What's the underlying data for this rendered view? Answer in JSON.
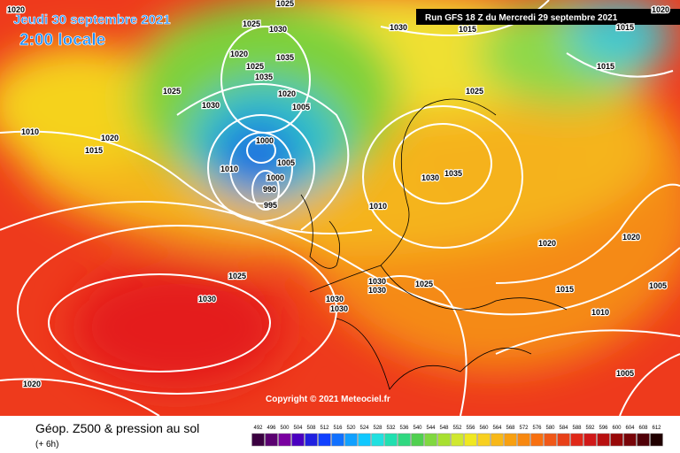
{
  "header": {
    "date": "Jeudi 30 septembre 2021",
    "time": "2:00 locale",
    "run": "Run GFS 18 Z du Mercredi 29 septembre 2021"
  },
  "copyright": "Copyright © 2021 Meteociel.fr",
  "footer": {
    "title": "Géop. Z500 & pression au sol",
    "lead": "(+ 6h)"
  },
  "legend": {
    "ticks": [
      492,
      496,
      500,
      504,
      508,
      512,
      516,
      520,
      524,
      528,
      532,
      536,
      540,
      544,
      548,
      552,
      556,
      560,
      564,
      568,
      572,
      576,
      580,
      584,
      588,
      592,
      596,
      600,
      604,
      608,
      612
    ]
  },
  "isobar_labels": [
    1020,
    1025,
    1025,
    1030,
    1020,
    1035,
    1025,
    1035,
    1030,
    1025,
    1020,
    1005,
    1000,
    1005,
    1010,
    1000,
    990,
    995,
    1010,
    1020,
    1015,
    1030,
    1015,
    1015,
    1015,
    1025,
    1035,
    1030,
    1010,
    1020,
    1020,
    1025,
    1030,
    1030,
    1030,
    1025,
    1030,
    1030,
    1015,
    1005,
    1010,
    1005,
    1020,
    1020
  ]
}
